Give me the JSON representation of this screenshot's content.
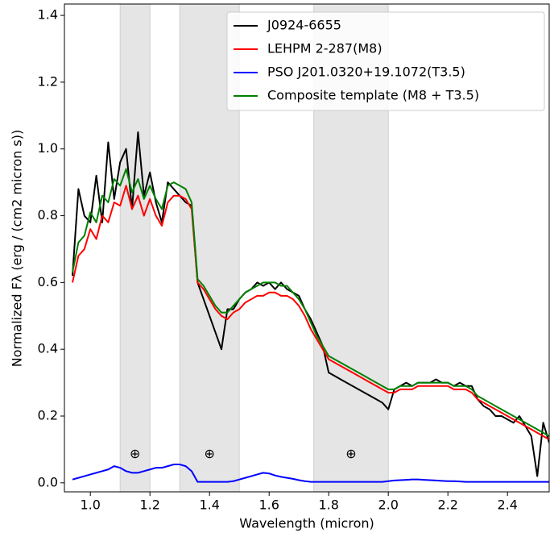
{
  "chart_data": {
    "type": "line",
    "xlabel": "Wavelength (micron)",
    "ylabel": "Normalized Fλ (erg / (cm2 micron s))",
    "x": [
      0.94,
      0.96,
      0.98,
      1.0,
      1.02,
      1.04,
      1.06,
      1.08,
      1.1,
      1.12,
      1.14,
      1.16,
      1.18,
      1.2,
      1.22,
      1.24,
      1.26,
      1.28,
      1.3,
      1.32,
      1.34,
      1.36,
      1.38,
      1.4,
      1.42,
      1.44,
      1.46,
      1.48,
      1.5,
      1.52,
      1.54,
      1.56,
      1.58,
      1.6,
      1.62,
      1.64,
      1.66,
      1.68,
      1.7,
      1.72,
      1.74,
      1.76,
      1.78,
      1.8,
      1.82,
      1.84,
      1.86,
      1.88,
      1.9,
      1.92,
      1.94,
      1.96,
      1.98,
      2.0,
      2.02,
      2.04,
      2.06,
      2.08,
      2.1,
      2.12,
      2.14,
      2.16,
      2.18,
      2.2,
      2.22,
      2.24,
      2.26,
      2.28,
      2.3,
      2.32,
      2.34,
      2.36,
      2.38,
      2.4,
      2.42,
      2.44,
      2.46,
      2.48,
      2.5,
      2.52,
      2.54
    ],
    "series": [
      {
        "name": "J0924-6655",
        "color": "#000000",
        "values": [
          0.62,
          0.88,
          0.8,
          0.78,
          0.92,
          0.78,
          1.02,
          0.85,
          0.96,
          1.0,
          0.82,
          1.05,
          0.86,
          0.93,
          0.84,
          0.78,
          0.9,
          0.88,
          0.86,
          0.84,
          0.83,
          0.6,
          0.55,
          0.5,
          0.45,
          0.4,
          0.52,
          0.52,
          0.55,
          0.57,
          0.58,
          0.6,
          0.59,
          0.6,
          0.58,
          0.6,
          0.58,
          0.57,
          0.56,
          0.52,
          0.49,
          0.45,
          0.41,
          0.33,
          0.32,
          0.31,
          0.3,
          0.29,
          0.28,
          0.27,
          0.26,
          0.25,
          0.24,
          0.22,
          0.28,
          0.29,
          0.3,
          0.29,
          0.3,
          0.3,
          0.3,
          0.31,
          0.3,
          0.3,
          0.29,
          0.3,
          0.29,
          0.29,
          0.25,
          0.23,
          0.22,
          0.2,
          0.2,
          0.19,
          0.18,
          0.2,
          0.17,
          0.14,
          0.02,
          0.18,
          0.12
        ]
      },
      {
        "name": "LEHPM 2-287(M8)",
        "color": "#ff0000",
        "values": [
          0.6,
          0.68,
          0.7,
          0.76,
          0.73,
          0.8,
          0.78,
          0.84,
          0.83,
          0.89,
          0.82,
          0.86,
          0.8,
          0.85,
          0.8,
          0.77,
          0.84,
          0.86,
          0.86,
          0.85,
          0.82,
          0.6,
          0.58,
          0.55,
          0.52,
          0.5,
          0.49,
          0.51,
          0.52,
          0.54,
          0.55,
          0.56,
          0.56,
          0.57,
          0.57,
          0.56,
          0.56,
          0.55,
          0.53,
          0.5,
          0.46,
          0.43,
          0.4,
          0.37,
          0.36,
          0.35,
          0.34,
          0.33,
          0.32,
          0.31,
          0.3,
          0.29,
          0.28,
          0.27,
          0.27,
          0.28,
          0.28,
          0.28,
          0.29,
          0.29,
          0.29,
          0.29,
          0.29,
          0.29,
          0.28,
          0.28,
          0.28,
          0.27,
          0.25,
          0.24,
          0.23,
          0.22,
          0.21,
          0.2,
          0.19,
          0.18,
          0.17,
          0.16,
          0.15,
          0.14,
          0.13
        ]
      },
      {
        "name": "PSO J201.0320+19.1072(T3.5)",
        "color": "#0000ff",
        "values": [
          0.01,
          0.015,
          0.02,
          0.025,
          0.03,
          0.035,
          0.04,
          0.05,
          0.045,
          0.035,
          0.03,
          0.03,
          0.035,
          0.04,
          0.045,
          0.045,
          0.05,
          0.055,
          0.055,
          0.05,
          0.035,
          0.003,
          0.003,
          0.003,
          0.003,
          0.003,
          0.003,
          0.005,
          0.01,
          0.015,
          0.02,
          0.025,
          0.03,
          0.028,
          0.022,
          0.018,
          0.015,
          0.012,
          0.008,
          0.005,
          0.003,
          0.003,
          0.003,
          0.003,
          0.003,
          0.003,
          0.003,
          0.003,
          0.003,
          0.003,
          0.003,
          0.003,
          0.003,
          0.005,
          0.007,
          0.008,
          0.009,
          0.01,
          0.01,
          0.009,
          0.008,
          0.007,
          0.006,
          0.005,
          0.005,
          0.004,
          0.003,
          0.003,
          0.003,
          0.003,
          0.003,
          0.003,
          0.003,
          0.003,
          0.003,
          0.003,
          0.003,
          0.003,
          0.003,
          0.003,
          0.003
        ]
      },
      {
        "name": "Composite template (M8 + T3.5)",
        "color": "#008000",
        "values": [
          0.63,
          0.72,
          0.74,
          0.81,
          0.78,
          0.86,
          0.84,
          0.91,
          0.89,
          0.94,
          0.87,
          0.91,
          0.85,
          0.89,
          0.85,
          0.82,
          0.89,
          0.9,
          0.89,
          0.88,
          0.84,
          0.61,
          0.59,
          0.56,
          0.53,
          0.51,
          0.51,
          0.53,
          0.55,
          0.57,
          0.58,
          0.59,
          0.6,
          0.6,
          0.6,
          0.59,
          0.59,
          0.57,
          0.55,
          0.52,
          0.48,
          0.44,
          0.41,
          0.38,
          0.37,
          0.36,
          0.35,
          0.34,
          0.33,
          0.32,
          0.31,
          0.3,
          0.29,
          0.28,
          0.28,
          0.29,
          0.29,
          0.29,
          0.3,
          0.3,
          0.3,
          0.3,
          0.3,
          0.3,
          0.29,
          0.29,
          0.29,
          0.28,
          0.26,
          0.25,
          0.24,
          0.23,
          0.22,
          0.21,
          0.2,
          0.19,
          0.18,
          0.17,
          0.16,
          0.15,
          0.14
        ]
      }
    ],
    "bands": [
      [
        1.1,
        1.2
      ],
      [
        1.3,
        1.5
      ],
      [
        1.75,
        2.0
      ]
    ],
    "annotations": [
      {
        "text": "⊕",
        "x": 1.15,
        "y": 0.085
      },
      {
        "text": "⊕",
        "x": 1.4,
        "y": 0.085
      },
      {
        "text": "⊕",
        "x": 1.875,
        "y": 0.085
      }
    ],
    "xlim": [
      0.913,
      2.54
    ],
    "ylim": [
      -0.027,
      1.434
    ],
    "xticks": [
      {
        "value": 1.0,
        "label": "1.0"
      },
      1.2,
      1.4,
      1.6,
      1.8,
      {
        "value": 2.0,
        "label": "2.0"
      },
      2.2,
      2.4
    ],
    "yticks": [
      {
        "value": 0,
        "label": "0.0"
      },
      0.2,
      0.4,
      0.6,
      0.8,
      {
        "value": 1.0,
        "label": "1.0"
      },
      1.2,
      1.4
    ],
    "legend": "upper right"
  }
}
